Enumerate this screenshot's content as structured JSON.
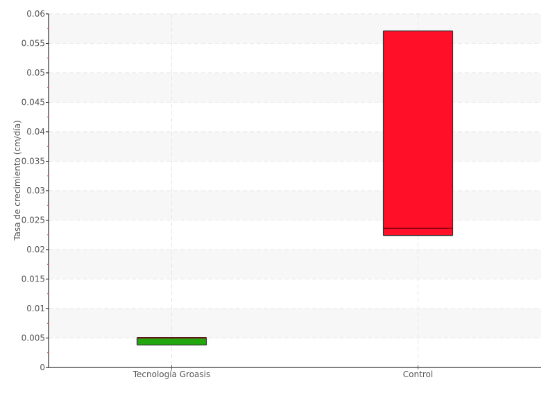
{
  "chart_data": {
    "type": "box",
    "title": "",
    "xlabel": "",
    "ylabel": "Tasa de crecimiento (cm/día)",
    "ylim": [
      0,
      0.06
    ],
    "yticks": [
      "0",
      "0.005",
      "0.01",
      "0.015",
      "0.02",
      "0.025",
      "0.03",
      "0.035",
      "0.04",
      "0.045",
      "0.05",
      "0.055",
      "0.06"
    ],
    "categories": [
      "Tecnología Groasis",
      "Control"
    ],
    "boxes": [
      {
        "category": "Tecnología Groasis",
        "q1": 0.0038,
        "median": 0.005,
        "q3": 0.0051,
        "color": "#22a80e"
      },
      {
        "category": "Control",
        "q1": 0.0224,
        "median": 0.0236,
        "q3": 0.0571,
        "color": "#ff0f28"
      }
    ],
    "grid": true,
    "band_color": "#f7f7f7"
  }
}
